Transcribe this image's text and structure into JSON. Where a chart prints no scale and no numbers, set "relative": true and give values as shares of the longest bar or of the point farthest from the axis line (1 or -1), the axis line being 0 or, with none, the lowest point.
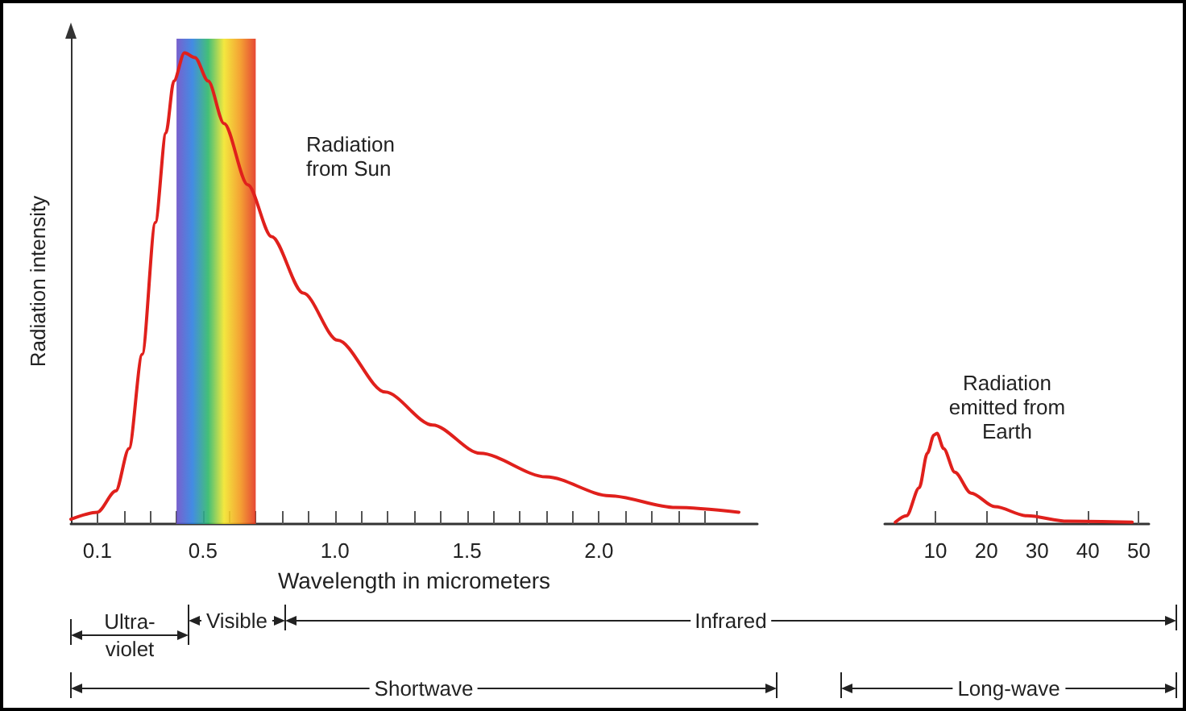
{
  "chart_data": [
    {
      "type": "line",
      "relative": true,
      "ylabel": "Radiation intensity",
      "xlabel": "Wavelength in micrometers",
      "xlim": [
        0,
        2.6
      ],
      "xticks": [
        0.1,
        {
          "value": 0.2,
          "label": null
        },
        {
          "value": 0.3,
          "label": null
        },
        {
          "value": 0.4,
          "label": null
        },
        0.5,
        {
          "value": 0.6,
          "label": null
        },
        {
          "value": 0.7,
          "label": null
        },
        {
          "value": 0.8,
          "label": null
        },
        {
          "value": 0.9,
          "label": null
        },
        {
          "value": 1,
          "label": "1.0"
        },
        {
          "value": 1.1,
          "label": null
        },
        {
          "value": 1.2,
          "label": null
        },
        {
          "value": 1.3,
          "label": null
        },
        {
          "value": 1.4,
          "label": null
        },
        1.5,
        {
          "value": 1.6,
          "label": null
        },
        {
          "value": 1.7,
          "label": null
        },
        {
          "value": 1.8,
          "label": null
        },
        {
          "value": 1.9,
          "label": null
        },
        {
          "value": 2,
          "label": "2.0"
        },
        {
          "value": 2.1,
          "label": null
        },
        {
          "value": 2.2,
          "label": null
        },
        {
          "value": 2.3,
          "label": null
        },
        {
          "value": 2.4,
          "label": null
        }
      ],
      "tick_labels": "x",
      "grid": false,
      "marker": "none",
      "line_style": "solid",
      "bands": [
        {
          "axis": "x",
          "from": 0.4,
          "to": 0.7
        }
      ],
      "series": [
        {
          "color": "#e0201c",
          "x": [
            0,
            0.1,
            0.17,
            0.22,
            0.27,
            0.32,
            0.36,
            0.39,
            0.43,
            0.47,
            0.52,
            0.58,
            0.67,
            0.76,
            0.88,
            1.01,
            1.19,
            1.37,
            1.55,
            1.8,
            2.04,
            2.29,
            2.53
          ],
          "values": [
            0.01,
            0.025,
            0.07,
            0.16,
            0.36,
            0.64,
            0.83,
            0.94,
            1,
            0.99,
            0.94,
            0.85,
            0.72,
            0.61,
            0.49,
            0.39,
            0.28,
            0.21,
            0.15,
            0.1,
            0.06,
            0.035,
            0.025
          ]
        }
      ],
      "annotations": [
        "Radiation from Sun",
        "Ultra-violet",
        "Visible",
        "Infrared",
        "Shortwave"
      ]
    },
    {
      "type": "line",
      "relative": true,
      "xlim": [
        0,
        52
      ],
      "xticks": [
        10,
        20,
        30,
        40,
        50
      ],
      "tick_labels": "x",
      "grid": false,
      "marker": "none",
      "line_style": "solid",
      "series": [
        {
          "color": "#e0201c",
          "x": [
            2.1,
            4.3,
            6.8,
            8.4,
            9.7,
            10.3,
            11.6,
            13.8,
            17,
            21.7,
            28,
            36,
            48.7
          ],
          "values": [
            0.02,
            0.09,
            0.4,
            0.78,
            0.98,
            1,
            0.83,
            0.57,
            0.34,
            0.19,
            0.09,
            0.03,
            0.02
          ]
        }
      ],
      "annotations": [
        "Radiation emitted from Earth",
        "Long-wave"
      ]
    }
  ]
}
